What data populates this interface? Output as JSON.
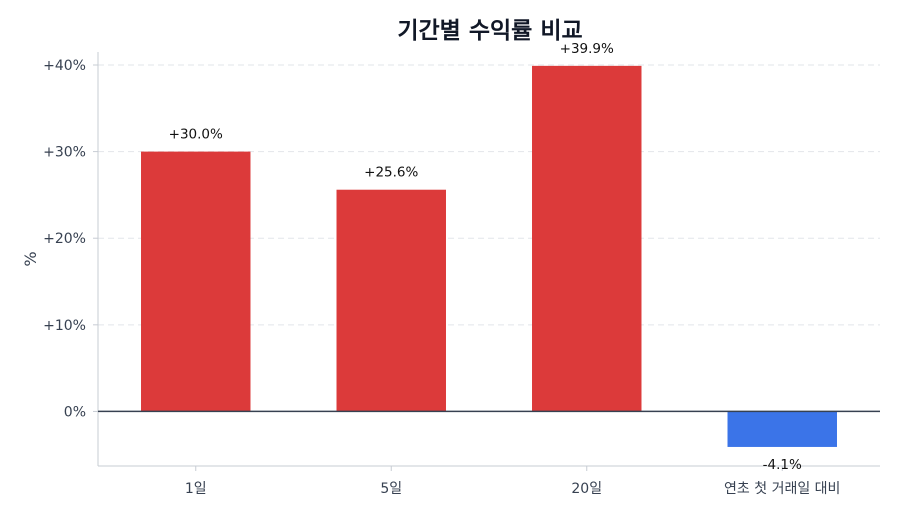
{
  "chart_data": {
    "type": "bar",
    "title": "기간별 수익률 비교",
    "xlabel": "",
    "ylabel": "%",
    "categories": [
      "1일",
      "5일",
      "20일",
      "연초 첫 거래일 대비"
    ],
    "values": [
      30.0,
      25.6,
      39.9,
      -4.1
    ],
    "data_labels": [
      "+30.0%",
      "+25.6%",
      "+39.9%",
      "-4.1%"
    ],
    "ylim": [
      -6.3,
      41.5
    ],
    "yticks": [
      0,
      10,
      20,
      30,
      40
    ],
    "ytick_labels": [
      "0%",
      "+10%",
      "+20%",
      "+30%",
      "+40%"
    ],
    "grid": true,
    "legend": "none",
    "colors": {
      "positive": "#dc3a3a",
      "negative": "#3b74e8",
      "grid": "#e2e5ea",
      "zero_line": "#374151",
      "axis": "#c7ccd3"
    }
  }
}
